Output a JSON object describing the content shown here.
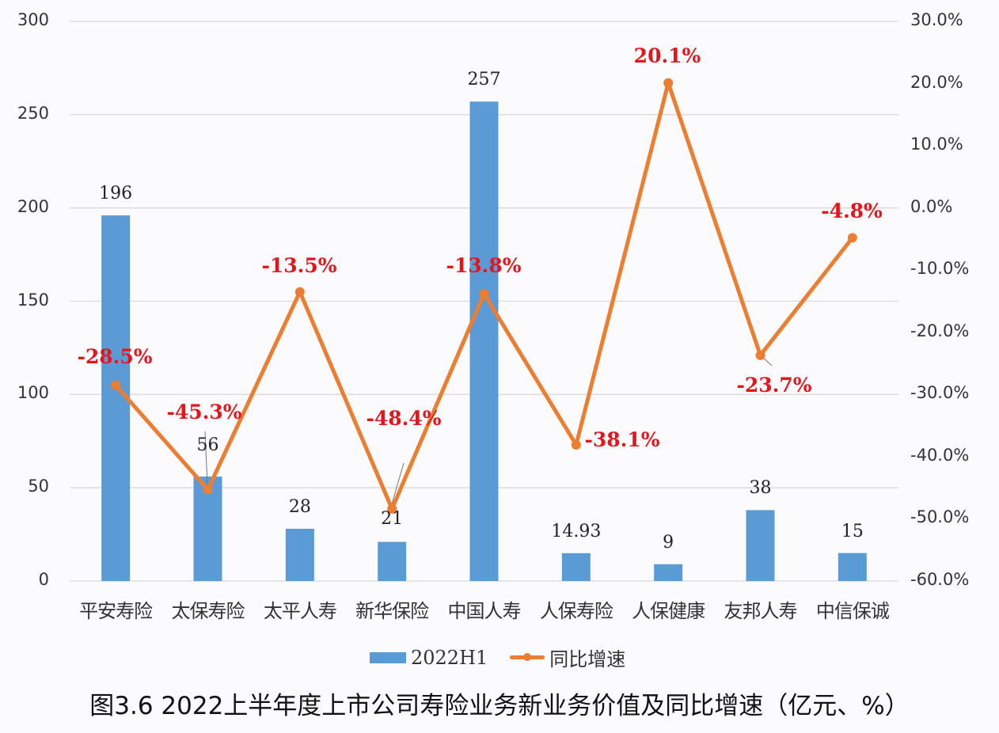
{
  "caption": "图3.6 2022上半年度上市公司寿险业务新业务价值及同比增速（亿元、%）",
  "left_axis_ticks": [
    "300",
    "250",
    "200",
    "150",
    "100",
    "50",
    "0"
  ],
  "right_axis_ticks": [
    "30.0%",
    "20.0%",
    "10.0%",
    "0.0%",
    "-10.0%",
    "-20.0%",
    "-30.0%",
    "-40.0%",
    "-50.0%",
    "-60.0%"
  ],
  "legend": {
    "bar_label": "2022H1",
    "line_label": "同比增速"
  },
  "colors": {
    "bar": "#5b9bd5",
    "line": "#ed7d31",
    "pct_label": "#e8141c",
    "grid": "#d9d9d9"
  },
  "chart_data": {
    "type": "bar+line",
    "title": "图3.6 2022上半年度上市公司寿险业务新业务价值及同比增速（亿元、%）",
    "categories": [
      "平安寿险",
      "太保寿险",
      "太平人寿",
      "新华保险",
      "中国人寿",
      "人保寿险",
      "人保健康",
      "友邦人寿",
      "中信保诚"
    ],
    "series": [
      {
        "name": "2022H1",
        "type": "bar",
        "axis": "left",
        "values": [
          196,
          56,
          28,
          21,
          257,
          14.93,
          9,
          38,
          15
        ],
        "labels": [
          "196",
          "56",
          "28",
          "21",
          "257",
          "14.93",
          "9",
          "38",
          "15"
        ]
      },
      {
        "name": "同比增速",
        "type": "line",
        "axis": "right",
        "values": [
          -28.5,
          -45.3,
          -13.5,
          -48.4,
          -13.8,
          -38.1,
          20.1,
          -23.7,
          -4.8
        ],
        "labels": [
          "-28.5%",
          "-45.3%",
          "-13.5%",
          "-48.4%",
          "-13.8%",
          "-38.1%",
          "20.1%",
          "-23.7%",
          "-4.8%"
        ]
      }
    ],
    "xlabel": "",
    "ylabel": "亿元",
    "y2label": "%",
    "ylim": [
      0,
      300
    ],
    "y2lim": [
      -60,
      30
    ],
    "grid": true,
    "legend_position": "bottom"
  }
}
